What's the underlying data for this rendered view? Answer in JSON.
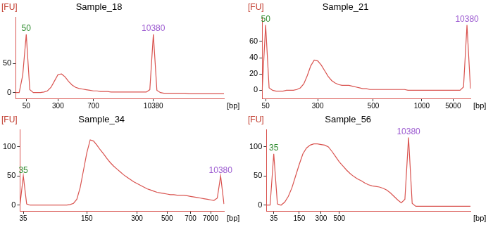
{
  "chart_data": [
    {
      "type": "line",
      "title": "Sample_18",
      "x_label": "[bp]",
      "y_label": "[FU]",
      "color": "#d9534f",
      "grid": false,
      "ylim": [
        -10,
        130
      ],
      "yticks": [
        0,
        50
      ],
      "categories": [
        null,
        null,
        null,
        "50",
        null,
        null,
        null,
        null,
        null,
        null,
        null,
        null,
        "300",
        null,
        null,
        null,
        null,
        null,
        null,
        null,
        null,
        null,
        "700",
        null,
        null,
        null,
        null,
        null,
        null,
        null,
        null,
        null,
        null,
        null,
        null,
        null,
        null,
        null,
        null,
        "10380",
        null,
        null,
        null,
        null,
        null,
        null,
        null,
        null,
        null,
        null,
        null,
        null,
        null,
        null,
        null,
        null,
        null,
        null,
        null,
        null
      ],
      "values": [
        0,
        0,
        30,
        100,
        5,
        0,
        0,
        0,
        1,
        3,
        9,
        20,
        31,
        32,
        27,
        19,
        13,
        9,
        7,
        6,
        5,
        4,
        3,
        3,
        2,
        2,
        2,
        1,
        1,
        1,
        1,
        1,
        1,
        1,
        1,
        1,
        1,
        1,
        5,
        100,
        4,
        0,
        -1,
        -1,
        -1,
        -1,
        -1,
        -1,
        -1,
        -2,
        -2,
        -2,
        -2,
        -2,
        -2,
        -2,
        -2,
        -2,
        -2,
        -2
      ],
      "annotations": [
        {
          "text": "50",
          "index": 3,
          "color": "#2e8b2e"
        },
        {
          "text": "10380",
          "index": 39,
          "color": "#9b59d0"
        }
      ]
    },
    {
      "type": "line",
      "title": "Sample_21",
      "x_label": "[bp]",
      "y_label": "[FU]",
      "color": "#d9534f",
      "grid": false,
      "ylim": [
        -10,
        90
      ],
      "yticks": [
        0,
        20,
        40,
        60
      ],
      "categories": [
        null,
        "50",
        null,
        null,
        null,
        null,
        null,
        null,
        null,
        null,
        null,
        null,
        null,
        null,
        null,
        null,
        "300",
        null,
        null,
        null,
        null,
        null,
        null,
        null,
        null,
        null,
        null,
        null,
        null,
        null,
        null,
        null,
        "500",
        null,
        null,
        null,
        null,
        null,
        null,
        null,
        null,
        null,
        null,
        null,
        null,
        null,
        "1000",
        null,
        null,
        null,
        null,
        null,
        null,
        null,
        null,
        "5000",
        null,
        null,
        null,
        null,
        null
      ],
      "values": [
        0,
        80,
        3,
        0,
        -1,
        -1,
        -1,
        0,
        0,
        0,
        1,
        3,
        8,
        18,
        30,
        37,
        36,
        31,
        24,
        17,
        12,
        9,
        7,
        6,
        6,
        6,
        5,
        4,
        3,
        2,
        2,
        1,
        1,
        1,
        1,
        1,
        1,
        1,
        1,
        1,
        1,
        1,
        0,
        0,
        0,
        0,
        0,
        0,
        0,
        0,
        0,
        0,
        0,
        0,
        0,
        0,
        0,
        0,
        4,
        80,
        2
      ],
      "annotations": [
        {
          "text": "50",
          "index": 1,
          "color": "#2e8b2e"
        },
        {
          "text": "10380",
          "index": 59,
          "color": "#9b59d0"
        }
      ]
    },
    {
      "type": "line",
      "title": "Sample_34",
      "x_label": "[bp]",
      "y_label": "[FU]",
      "color": "#d9534f",
      "grid": false,
      "ylim": [
        -10,
        130
      ],
      "yticks": [
        0,
        50,
        100
      ],
      "categories": [
        null,
        "35",
        null,
        null,
        null,
        null,
        null,
        null,
        null,
        null,
        null,
        null,
        null,
        null,
        null,
        null,
        null,
        null,
        null,
        null,
        "150",
        null,
        null,
        null,
        null,
        null,
        null,
        null,
        null,
        null,
        null,
        null,
        null,
        null,
        null,
        "300",
        null,
        null,
        null,
        null,
        null,
        null,
        null,
        null,
        "500",
        null,
        null,
        null,
        null,
        null,
        null,
        "700",
        null,
        null,
        null,
        null,
        null,
        "7000",
        null,
        null,
        null,
        null
      ],
      "values": [
        0,
        50,
        2,
        0,
        0,
        0,
        0,
        0,
        0,
        0,
        0,
        0,
        0,
        0,
        0,
        1,
        3,
        10,
        30,
        60,
        90,
        112,
        110,
        103,
        95,
        88,
        80,
        73,
        67,
        62,
        57,
        52,
        48,
        44,
        40,
        37,
        34,
        31,
        28,
        26,
        24,
        22,
        21,
        20,
        19,
        18,
        18,
        17,
        17,
        17,
        16,
        15,
        14,
        13,
        12,
        11,
        10,
        9,
        8,
        12,
        50,
        2
      ],
      "annotations": [
        {
          "text": "35",
          "index": 1,
          "color": "#2e8b2e"
        },
        {
          "text": "10380",
          "index": 60,
          "color": "#9b59d0"
        }
      ]
    },
    {
      "type": "line",
      "title": "Sample_56",
      "x_label": "[bp]",
      "y_label": "[FU]",
      "color": "#d9534f",
      "grid": false,
      "ylim": [
        -10,
        130
      ],
      "yticks": [
        0,
        50,
        100
      ],
      "categories": [
        null,
        null,
        "35",
        null,
        null,
        null,
        null,
        null,
        null,
        "150",
        null,
        null,
        null,
        null,
        null,
        "300",
        null,
        null,
        null,
        null,
        "500",
        null,
        null,
        null,
        null,
        null,
        null,
        null,
        null,
        null,
        null,
        null,
        null,
        null,
        null,
        null,
        null,
        null,
        null,
        null,
        null,
        null,
        null,
        null,
        null,
        null,
        null,
        null,
        null,
        null,
        null,
        null,
        null,
        null,
        null,
        null,
        null
      ],
      "values": [
        0,
        0,
        88,
        2,
        0,
        5,
        15,
        30,
        50,
        70,
        88,
        98,
        103,
        105,
        105,
        104,
        103,
        100,
        92,
        83,
        74,
        67,
        60,
        54,
        49,
        45,
        42,
        38,
        35,
        33,
        32,
        31,
        29,
        26,
        21,
        15,
        9,
        4,
        10,
        116,
        3,
        -2,
        -2,
        -2,
        -2,
        -2,
        -2,
        -2,
        -2,
        -2,
        -2,
        -2,
        -2,
        -2,
        -2,
        -2,
        -2
      ],
      "annotations": [
        {
          "text": "35",
          "index": 2,
          "color": "#2e8b2e"
        },
        {
          "text": "10380",
          "index": 39,
          "color": "#9b59d0"
        }
      ]
    }
  ]
}
